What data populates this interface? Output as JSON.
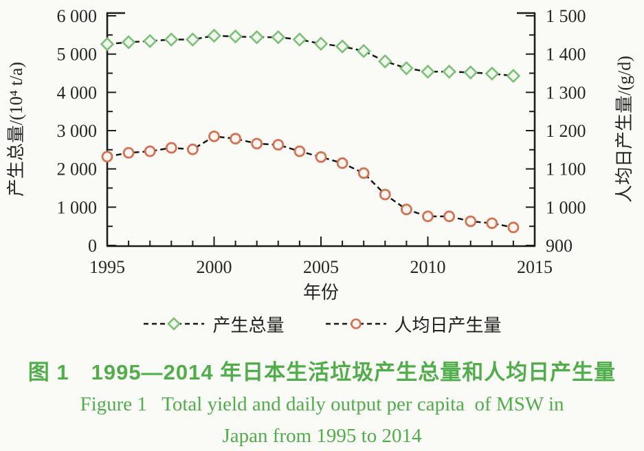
{
  "figure": {
    "caption_zh": "图 1　1995—2014 年日本生活垃圾产生总量和人均日产生量",
    "caption_en_line1": "Figure 1   Total yield and daily output per capita  of MSW in",
    "caption_en_line2": "Japan from 1995 to 2014",
    "caption_color": "#4fae49"
  },
  "chart_data": {
    "type": "line",
    "x": [
      1995,
      1996,
      1997,
      1998,
      1999,
      2000,
      2001,
      2002,
      2003,
      2004,
      2005,
      2006,
      2007,
      2008,
      2009,
      2010,
      2011,
      2012,
      2013,
      2014
    ],
    "series": [
      {
        "id": "total",
        "name": "产生总量",
        "axis": "left",
        "marker": "diamond",
        "color": "#7cbf77",
        "fill": "#eff7ec",
        "values": [
          5260,
          5310,
          5340,
          5380,
          5380,
          5480,
          5460,
          5440,
          5440,
          5380,
          5270,
          5200,
          5080,
          4810,
          4630,
          4540,
          4540,
          4520,
          4490,
          4430
        ]
      },
      {
        "id": "per-capita",
        "name": "人均日产生量",
        "axis": "right",
        "marker": "circle",
        "color": "#d7704f",
        "fill": "#fdf5f0",
        "values": [
          1132,
          1142,
          1146,
          1155,
          1151,
          1185,
          1179,
          1166,
          1163,
          1146,
          1131,
          1115,
          1089,
          1033,
          994,
          976,
          976,
          963,
          958,
          947
        ]
      }
    ],
    "title": "",
    "xlabel": "年份",
    "ylabel_left": "产生总量/(10⁴ t/a)",
    "ylabel_right": "人均日产生量/(g/d)",
    "xlim": [
      1995,
      2015
    ],
    "ylim_left": [
      0,
      6000
    ],
    "ylim_right": [
      900,
      1500
    ],
    "grid": "off",
    "legend_position": "bottom-center",
    "line_style": "dashed",
    "x_ticks_major": [
      1995,
      2000,
      2005,
      2010,
      2015
    ],
    "x_tick_labels": [
      "1995",
      "2000",
      "2005",
      "2010",
      "2015"
    ],
    "x_minor_step": 1,
    "y_ticks_left": {
      "major_step": 1000,
      "minor_step": 500
    },
    "y_ticks_right": {
      "major_step": 100,
      "minor_step": 50
    },
    "left_tick_labels": [
      "0",
      "1 000",
      "2 000",
      "3 000",
      "4 000",
      "5 000",
      "6 000"
    ],
    "right_tick_labels": [
      "900",
      "1 000",
      "1 100",
      "1 200",
      "1 300",
      "1 400",
      "1 500"
    ],
    "colors": {
      "axis": "#1c1c1c",
      "text": "#262626",
      "line": "#161616"
    }
  }
}
